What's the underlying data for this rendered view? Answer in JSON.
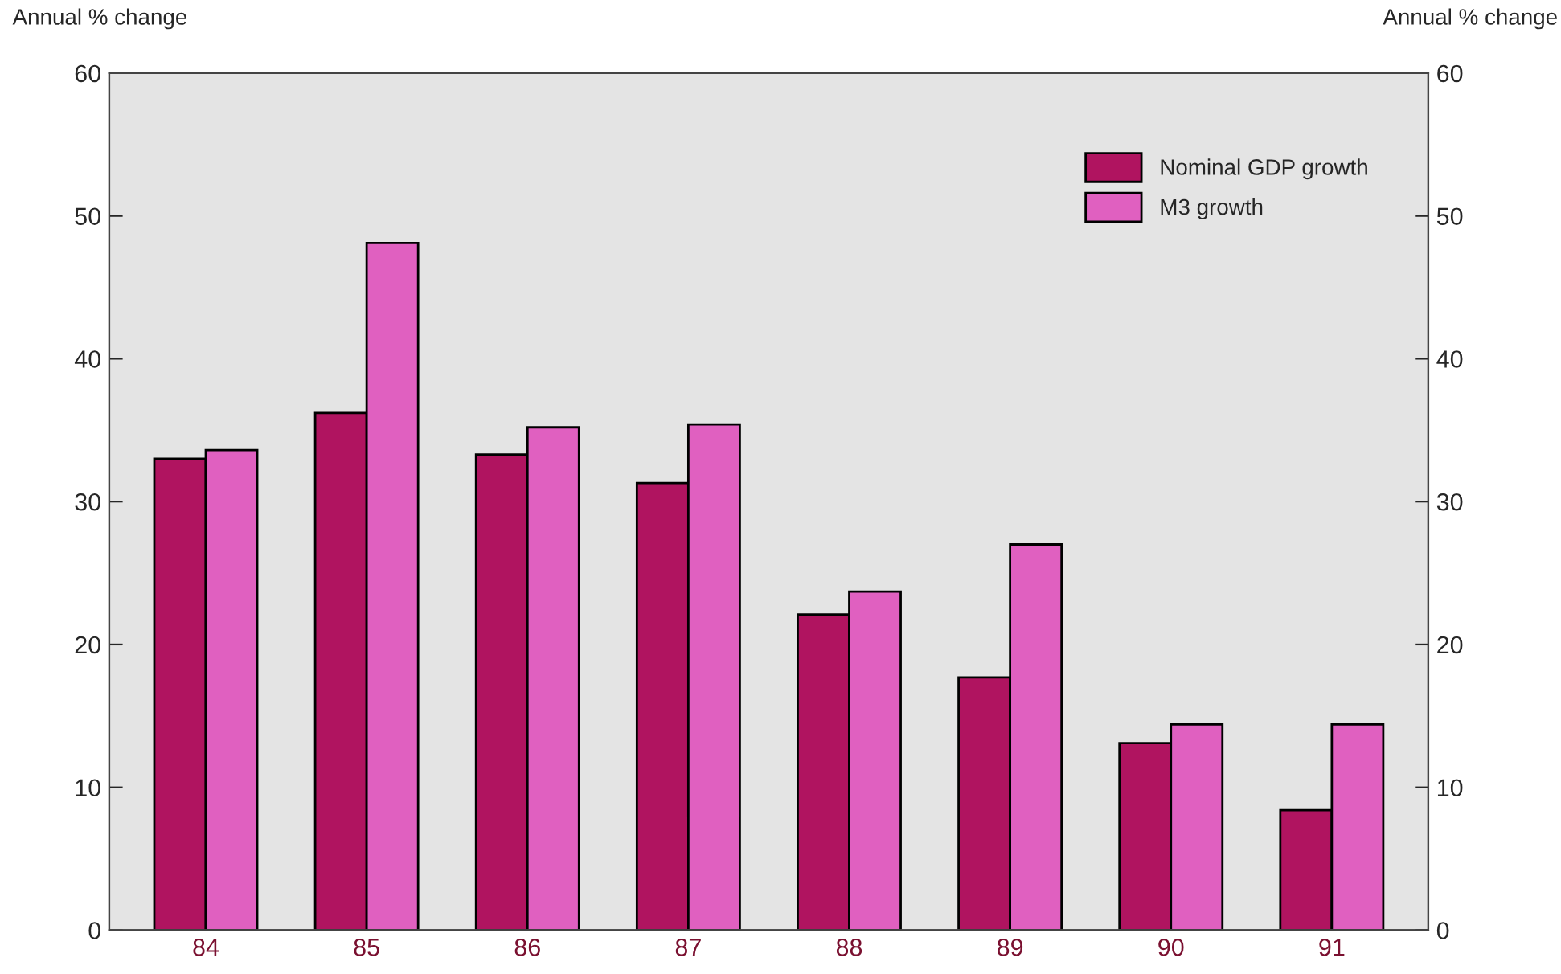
{
  "chart_data": {
    "type": "bar",
    "ylabel": "Annual % change",
    "y2label": "Annual % change",
    "categories": [
      "84",
      "85",
      "86",
      "87",
      "88",
      "89",
      "90",
      "91"
    ],
    "series": [
      {
        "name": "Nominal GDP growth",
        "color": "#b01460",
        "values": [
          33.0,
          36.2,
          33.3,
          31.3,
          22.1,
          17.7,
          13.1,
          8.4
        ]
      },
      {
        "name": "M3 growth",
        "color": "#e060c0",
        "values": [
          33.6,
          48.1,
          35.2,
          35.4,
          23.7,
          27.0,
          14.4,
          14.4
        ]
      }
    ],
    "ylim": [
      0,
      60
    ],
    "yticks": [
      0,
      10,
      20,
      30,
      40,
      50,
      60
    ],
    "y2lim": [
      0,
      60
    ],
    "y2ticks": [
      0,
      10,
      20,
      30,
      40,
      50,
      60
    ],
    "grid": false,
    "legend": "top right"
  }
}
